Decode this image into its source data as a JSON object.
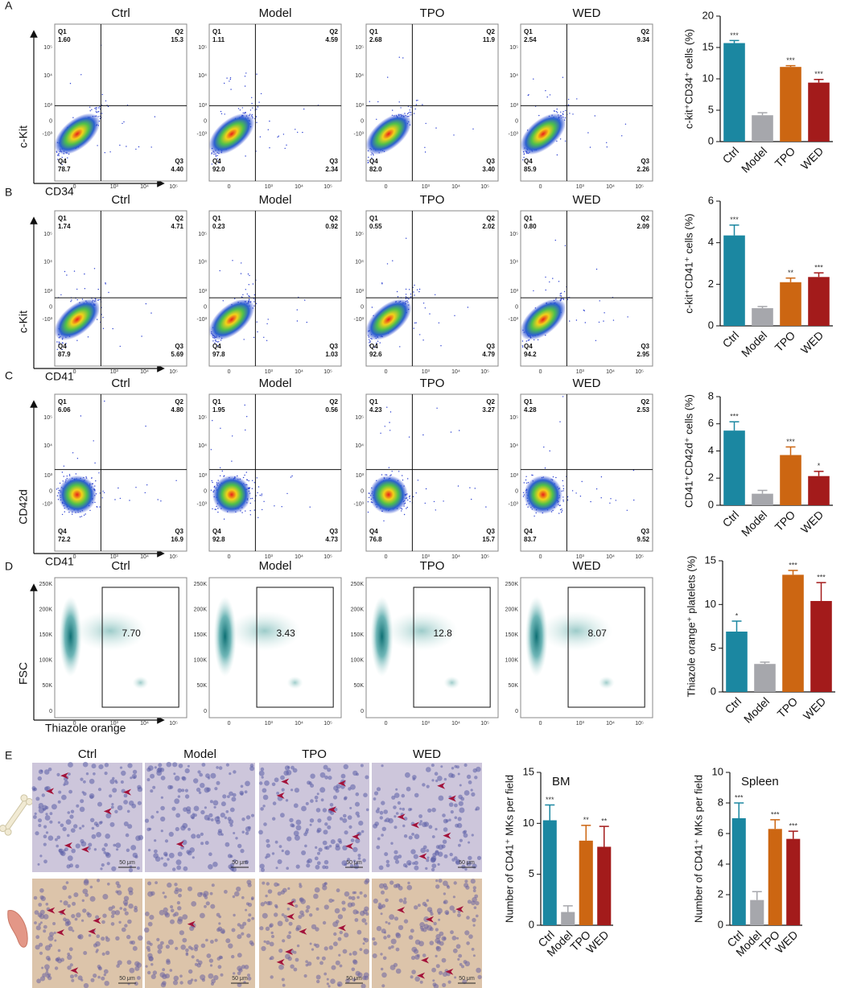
{
  "flow_rows": [
    {
      "letter": "A",
      "x_label": "CD34",
      "y_label": "c-Kit",
      "plots": [
        {
          "title": "Ctrl",
          "quadrants": [
            "1.60",
            "15.3",
            "4.40",
            "78.7"
          ]
        },
        {
          "title": "Model",
          "quadrants": [
            "1.11",
            "4.59",
            "2.34",
            "92.0"
          ]
        },
        {
          "title": "TPO",
          "quadrants": [
            "2.68",
            "11.9",
            "3.40",
            "82.0"
          ]
        },
        {
          "title": "WED",
          "quadrants": [
            "2.54",
            "9.34",
            "2.26",
            "85.9"
          ]
        }
      ]
    },
    {
      "letter": "B",
      "x_label": "CD41",
      "y_label": "c-Kit",
      "plots": [
        {
          "title": "Ctrl",
          "quadrants": [
            "1.74",
            "4.71",
            "5.69",
            "87.9"
          ]
        },
        {
          "title": "Model",
          "quadrants": [
            "0.23",
            "0.92",
            "1.03",
            "97.8"
          ]
        },
        {
          "title": "TPO",
          "quadrants": [
            "0.55",
            "2.02",
            "4.79",
            "92.6"
          ]
        },
        {
          "title": "WED",
          "quadrants": [
            "0.80",
            "2.09",
            "2.95",
            "94.2"
          ]
        }
      ]
    },
    {
      "letter": "C",
      "x_label": "CD41",
      "y_label": "CD42d",
      "plots": [
        {
          "title": "Ctrl",
          "quadrants": [
            "6.06",
            "4.80",
            "16.9",
            "72.2"
          ]
        },
        {
          "title": "Model",
          "quadrants": [
            "1.95",
            "0.56",
            "4.73",
            "92.8"
          ]
        },
        {
          "title": "TPO",
          "quadrants": [
            "4.23",
            "3.27",
            "15.7",
            "76.8"
          ]
        },
        {
          "title": "WED",
          "quadrants": [
            "4.28",
            "2.53",
            "9.52",
            "83.7"
          ]
        }
      ]
    }
  ],
  "quadrant_names": [
    "Q1",
    "Q2",
    "Q3",
    "Q4"
  ],
  "flow_x_ticks": [
    "0",
    "10³",
    "10⁴",
    "10⁵"
  ],
  "flow_y_ticks": [
    "10⁵",
    "10⁴",
    "10³",
    "0",
    "-10³"
  ],
  "gate_row": {
    "letter": "D",
    "x_label": "Thiazole orange",
    "y_label": "FSC",
    "y_ticks": [
      "250K",
      "200K",
      "150K",
      "100K",
      "50K",
      "0"
    ],
    "plots": [
      {
        "title": "Ctrl",
        "gate": "7.70"
      },
      {
        "title": "Model",
        "gate": "3.43"
      },
      {
        "title": "TPO",
        "gate": "12.8"
      },
      {
        "title": "WED",
        "gate": "8.07"
      }
    ]
  },
  "histology": {
    "letter": "E",
    "columns": [
      "Ctrl",
      "Model",
      "TPO",
      "WED"
    ],
    "scale_bar": "50 μm"
  },
  "chart_data": [
    {
      "type": "bar",
      "ylabel": "c-kit⁺CD34⁺ cells (%)",
      "categories": [
        "Ctrl",
        "Model",
        "TPO",
        "WED"
      ],
      "values": [
        15.7,
        4.2,
        11.9,
        9.4
      ],
      "error": [
        0.4,
        0.4,
        0.2,
        0.5
      ],
      "annotations": [
        "***",
        null,
        "***",
        "***"
      ],
      "colors": [
        "#1b87a1",
        "#a6a7ac",
        "#cc6612",
        "#a31b1b"
      ],
      "ylim": [
        0,
        20
      ],
      "yticks": [
        0,
        5,
        10,
        15,
        20
      ]
    },
    {
      "type": "bar",
      "ylabel": "c-kit⁺CD41⁺ cells (%)",
      "categories": [
        "Ctrl",
        "Model",
        "TPO",
        "WED"
      ],
      "values": [
        4.35,
        0.85,
        2.1,
        2.35
      ],
      "error": [
        0.5,
        0.08,
        0.2,
        0.2
      ],
      "annotations": [
        "***",
        null,
        "**",
        "***"
      ],
      "colors": [
        "#1b87a1",
        "#a6a7ac",
        "#cc6612",
        "#a31b1b"
      ],
      "ylim": [
        0,
        6
      ],
      "yticks": [
        0,
        2,
        4,
        6
      ]
    },
    {
      "type": "bar",
      "ylabel": "CD41⁺CD42d⁺ cells (%)",
      "categories": [
        "Ctrl",
        "Model",
        "TPO",
        "WED"
      ],
      "values": [
        5.5,
        0.85,
        3.7,
        2.15
      ],
      "error": [
        0.65,
        0.25,
        0.6,
        0.35
      ],
      "annotations": [
        "***",
        null,
        "***",
        "*"
      ],
      "colors": [
        "#1b87a1",
        "#a6a7ac",
        "#cc6612",
        "#a31b1b"
      ],
      "ylim": [
        0,
        8
      ],
      "yticks": [
        0,
        2,
        4,
        6,
        8
      ]
    },
    {
      "type": "bar",
      "ylabel": "Thiazole orange⁺ platelets (%)",
      "categories": [
        "Ctrl",
        "Model",
        "TPO",
        "WED"
      ],
      "values": [
        6.9,
        3.2,
        13.4,
        10.4
      ],
      "error": [
        1.2,
        0.2,
        0.5,
        2.1
      ],
      "annotations": [
        "*",
        null,
        "***",
        "***"
      ],
      "colors": [
        "#1b87a1",
        "#a6a7ac",
        "#cc6612",
        "#a31b1b"
      ],
      "ylim": [
        0,
        15
      ],
      "yticks": [
        0,
        5,
        10,
        15
      ]
    },
    {
      "type": "bar",
      "title": "BM",
      "ylabel": "Number of CD41⁺ MKs per field",
      "categories": [
        "Ctrl",
        "Model",
        "TPO",
        "WED"
      ],
      "values": [
        10.3,
        1.3,
        8.3,
        7.7
      ],
      "error": [
        1.5,
        0.6,
        1.5,
        2.0
      ],
      "annotations": [
        "***",
        null,
        "**",
        "**"
      ],
      "colors": [
        "#1b87a1",
        "#a6a7ac",
        "#cc6612",
        "#a31b1b"
      ],
      "ylim": [
        0,
        15
      ],
      "yticks": [
        0,
        5,
        10,
        15
      ]
    },
    {
      "type": "bar",
      "title": "Spleen",
      "ylabel": "Number of CD41⁺ MKs per field",
      "categories": [
        "Ctrl",
        "Model",
        "TPO",
        "WED"
      ],
      "values": [
        7.0,
        1.65,
        6.3,
        5.65
      ],
      "error": [
        1.0,
        0.55,
        0.6,
        0.5
      ],
      "annotations": [
        "***",
        null,
        "***",
        "***"
      ],
      "colors": [
        "#1b87a1",
        "#a6a7ac",
        "#cc6612",
        "#a31b1b"
      ],
      "ylim": [
        0,
        10
      ],
      "yticks": [
        0,
        2,
        4,
        6,
        8,
        10
      ]
    }
  ]
}
